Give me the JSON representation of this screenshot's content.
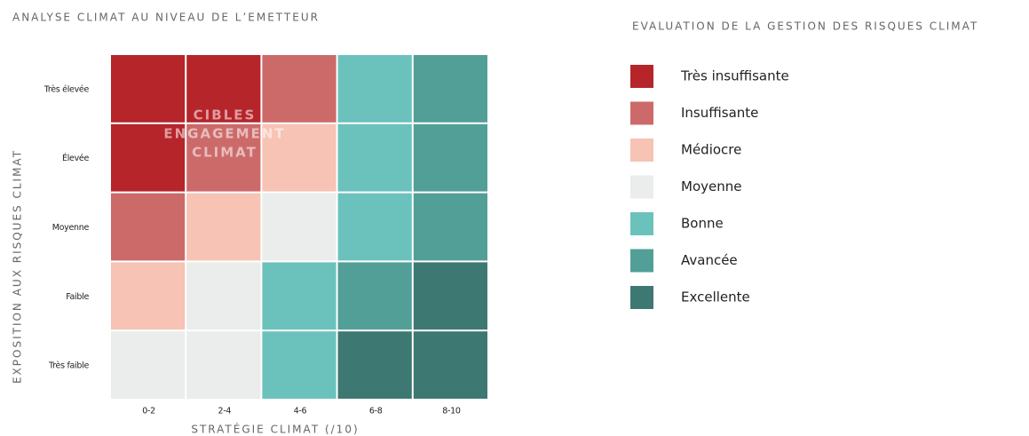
{
  "title": "ANALYSE CLIMAT AU NIVEAU DE L’EMETTEUR",
  "matrix": {
    "rows": [
      "Très élevée",
      "Élevée",
      "Moyenne",
      "Faible",
      "Très faible"
    ],
    "columns": [
      "0-2",
      "2-4",
      "4-6",
      "6-8",
      "8-10"
    ],
    "x_axis_label": "STRATÉGIE CLIMAT (/10)",
    "y_axis_label": "EXPOSITION AUX RISQUES CLIMAT",
    "cells": [
      [
        "#b5252a",
        "#b5252a",
        "#cc6a6a",
        "#6bc2bc",
        "#529f98"
      ],
      [
        "#b5252a",
        "#cc6a6a",
        "#f6c3b5",
        "#6bc2bc",
        "#529f98"
      ],
      [
        "#cc6a6a",
        "#f6c3b5",
        "#ebecec",
        "#6bc2bc",
        "#529f98"
      ],
      [
        "#f6c3b5",
        "#ebecec",
        "#6bc2bc",
        "#529f98",
        "#3e7872"
      ],
      [
        "#ebecec",
        "#ebecec",
        "#6bc2bc",
        "#3e7872",
        "#3e7872"
      ]
    ],
    "overlay": [
      "CIBLES",
      "ENGAGEMENT",
      "CLIMAT"
    ]
  },
  "legend": {
    "title": "EVALUATION DE LA GESTION DES RISQUES CLIMAT",
    "items": [
      {
        "label": "Très insuffisante",
        "color": "#b5252a"
      },
      {
        "label": "Insuffisante",
        "color": "#cc6a6a"
      },
      {
        "label": "Médiocre",
        "color": "#f6c3b5"
      },
      {
        "label": "Moyenne",
        "color": "#ebecec"
      },
      {
        "label": "Bonne",
        "color": "#6bc2bc"
      },
      {
        "label": "Avancée",
        "color": "#529f98"
      },
      {
        "label": "Excellente",
        "color": "#3e7872"
      }
    ]
  }
}
